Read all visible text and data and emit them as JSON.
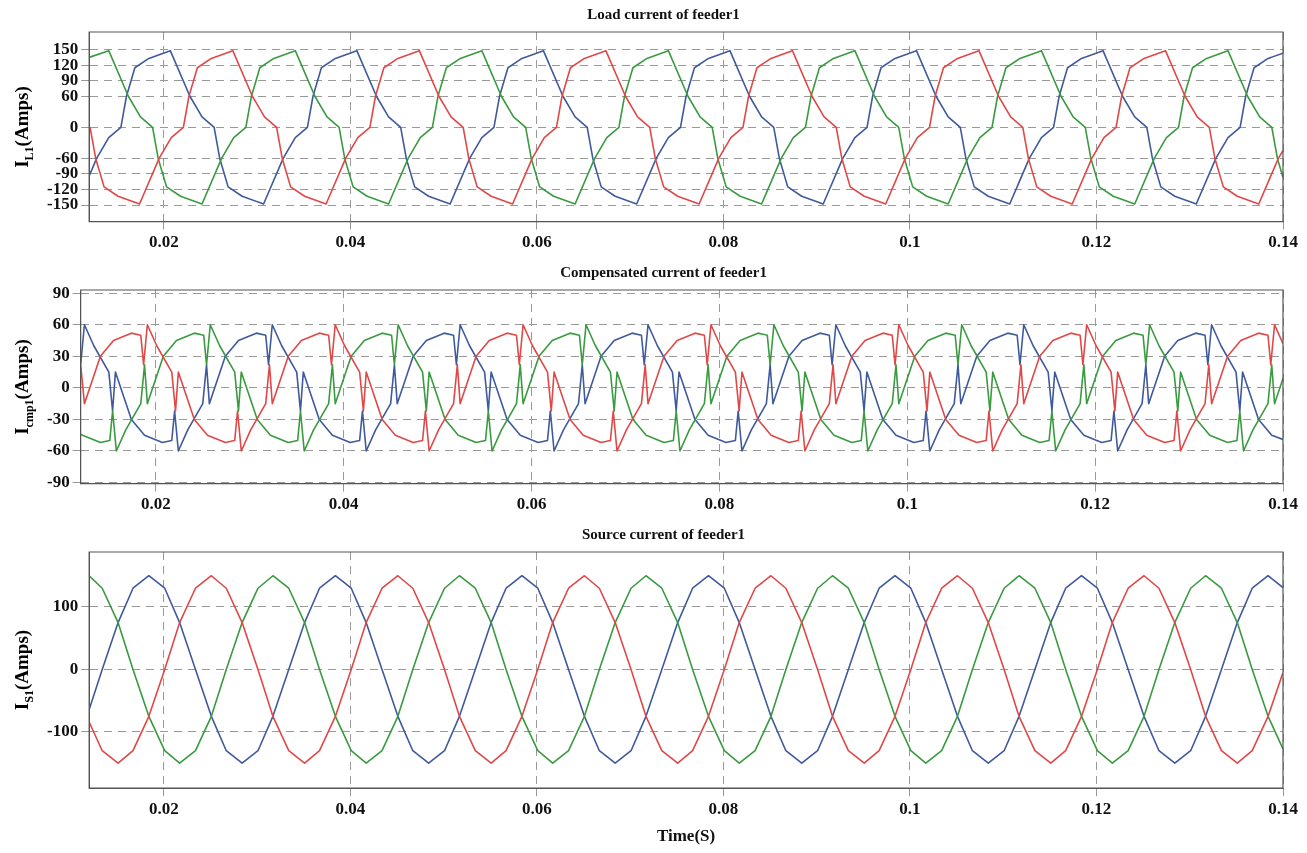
{
  "chart_data": [
    {
      "type": "line",
      "title": "Load current of feeder1",
      "ylabel": "I$_{L1}$(Amps)",
      "xlim": [
        0.012,
        0.14
      ],
      "xticks": [
        0.02,
        0.04,
        0.06,
        0.08,
        0.1,
        0.12,
        0.14
      ],
      "ylim": [
        -182,
        184
      ],
      "yticks": [
        -150,
        -120,
        -90,
        -60,
        0,
        60,
        90,
        120,
        150
      ],
      "grid": true,
      "marker": "none",
      "line_style": "solid",
      "series": [
        {
          "color": "#e04848",
          "x": [
            0.0121,
            0.0127,
            0.0136,
            0.0151,
            0.0174,
            0.0195,
            0.0208,
            0.0221,
            0.0227,
            0.0236,
            0.0251,
            0.0274,
            0.0295,
            0.0308,
            0.0321,
            0.0327,
            0.0336,
            0.0351,
            0.0374,
            0.0395,
            0.0408,
            0.0421,
            0.0427,
            0.0436,
            0.0451,
            0.0474,
            0.0495,
            0.0508,
            0.0521,
            0.0527,
            0.0536,
            0.0551,
            0.0574,
            0.0595,
            0.0608,
            0.0621,
            0.0627,
            0.0636,
            0.0651,
            0.0674,
            0.0695,
            0.0708,
            0.0721,
            0.0727,
            0.0736,
            0.0751,
            0.0774,
            0.0795,
            0.0808,
            0.0821,
            0.0827,
            0.0836,
            0.0851,
            0.0874,
            0.0895,
            0.0908,
            0.0921,
            0.0927,
            0.0936,
            0.0951,
            0.0974,
            0.0995,
            0.1008,
            0.1021,
            0.1027,
            0.1036,
            0.1051,
            0.1074,
            0.1095,
            0.1108,
            0.1121,
            0.1127,
            0.1136,
            0.1151,
            0.1174,
            0.1195,
            0.1208,
            0.1221,
            0.1227,
            0.1236,
            0.1251,
            0.1274,
            0.1295,
            0.1308,
            0.1321,
            0.1327,
            0.1336,
            0.1351,
            0.1374,
            0.1395,
            0.14
          ],
          "values": [
            0,
            -60,
            -115,
            -133,
            -148,
            -60,
            -20,
            0,
            60,
            115,
            133,
            148,
            60,
            20,
            0,
            -60,
            -115,
            -133,
            -148,
            -60,
            -20,
            0,
            60,
            115,
            133,
            148,
            60,
            20,
            0,
            -60,
            -115,
            -133,
            -148,
            -60,
            -20,
            0,
            60,
            115,
            133,
            148,
            60,
            20,
            0,
            -60,
            -115,
            -133,
            -148,
            -60,
            -20,
            0,
            60,
            115,
            133,
            148,
            60,
            20,
            0,
            -60,
            -115,
            -133,
            -148,
            -60,
            -20,
            0,
            60,
            115,
            133,
            148,
            60,
            20,
            0,
            -60,
            -115,
            -133,
            -148,
            -60,
            -20,
            0,
            60,
            115,
            133,
            148,
            60,
            20,
            0,
            -60,
            -115,
            -133,
            -148,
            -60,
            -45
          ]
        },
        {
          "color": "#3a9a40",
          "x": [
            0.012,
            0.0141,
            0.0162,
            0.0175,
            0.0188,
            0.0194,
            0.0203,
            0.0218,
            0.0241,
            0.0262,
            0.0275,
            0.0288,
            0.0294,
            0.0303,
            0.0318,
            0.0341,
            0.0362,
            0.0375,
            0.0388,
            0.0394,
            0.0403,
            0.0418,
            0.0441,
            0.0462,
            0.0475,
            0.0488,
            0.0494,
            0.0503,
            0.0518,
            0.0541,
            0.0562,
            0.0575,
            0.0588,
            0.0594,
            0.0603,
            0.0618,
            0.0641,
            0.0662,
            0.0675,
            0.0688,
            0.0694,
            0.0703,
            0.0718,
            0.0741,
            0.0762,
            0.0775,
            0.0788,
            0.0794,
            0.0803,
            0.0818,
            0.0841,
            0.0862,
            0.0875,
            0.0888,
            0.0894,
            0.0903,
            0.0918,
            0.0941,
            0.0962,
            0.0975,
            0.0988,
            0.0994,
            0.1003,
            0.1018,
            0.1041,
            0.1062,
            0.1075,
            0.1088,
            0.1094,
            0.1103,
            0.1118,
            0.1141,
            0.1162,
            0.1175,
            0.1188,
            0.1194,
            0.1203,
            0.1218,
            0.1241,
            0.1262,
            0.1275,
            0.1288,
            0.1294,
            0.1303,
            0.1318,
            0.1341,
            0.1362,
            0.1375,
            0.1388,
            0.1394,
            0.14
          ],
          "values": [
            135,
            148,
            60,
            20,
            0,
            -60,
            -115,
            -133,
            -148,
            -60,
            -20,
            0,
            60,
            115,
            133,
            148,
            60,
            20,
            0,
            -60,
            -115,
            -133,
            -148,
            -60,
            -20,
            0,
            60,
            115,
            133,
            148,
            60,
            20,
            0,
            -60,
            -115,
            -133,
            -148,
            -60,
            -20,
            0,
            60,
            115,
            133,
            148,
            60,
            20,
            0,
            -60,
            -115,
            -133,
            -148,
            -60,
            -20,
            0,
            60,
            115,
            133,
            148,
            60,
            20,
            0,
            -60,
            -115,
            -133,
            -148,
            -60,
            -20,
            0,
            60,
            115,
            133,
            148,
            60,
            20,
            0,
            -60,
            -115,
            -133,
            -148,
            -60,
            -20,
            0,
            60,
            115,
            133,
            148,
            60,
            20,
            0,
            -60,
            -97
          ]
        },
        {
          "color": "#3f5a9c",
          "x": [
            0.012,
            0.0128,
            0.0141,
            0.0154,
            0.016,
            0.0169,
            0.0184,
            0.0207,
            0.0228,
            0.0241,
            0.0254,
            0.026,
            0.0269,
            0.0284,
            0.0307,
            0.0328,
            0.0341,
            0.0354,
            0.036,
            0.0369,
            0.0384,
            0.0407,
            0.0428,
            0.0441,
            0.0454,
            0.046,
            0.0469,
            0.0484,
            0.0507,
            0.0528,
            0.0541,
            0.0554,
            0.056,
            0.0569,
            0.0584,
            0.0607,
            0.0628,
            0.0641,
            0.0654,
            0.066,
            0.0669,
            0.0684,
            0.0707,
            0.0728,
            0.0741,
            0.0754,
            0.076,
            0.0769,
            0.0784,
            0.0807,
            0.0828,
            0.0841,
            0.0854,
            0.086,
            0.0869,
            0.0884,
            0.0907,
            0.0928,
            0.0941,
            0.0954,
            0.096,
            0.0969,
            0.0984,
            0.1007,
            0.1028,
            0.1041,
            0.1054,
            0.106,
            0.1069,
            0.1084,
            0.1107,
            0.1128,
            0.1141,
            0.1154,
            0.116,
            0.1169,
            0.1184,
            0.1207,
            0.1228,
            0.1241,
            0.1254,
            0.126,
            0.1269,
            0.1284,
            0.1307,
            0.1328,
            0.1341,
            0.1354,
            0.136,
            0.1369,
            0.1384,
            0.14
          ],
          "values": [
            -94,
            -60,
            -20,
            0,
            60,
            115,
            133,
            148,
            60,
            20,
            0,
            -60,
            -115,
            -133,
            -148,
            -60,
            -20,
            0,
            60,
            115,
            133,
            148,
            60,
            20,
            0,
            -60,
            -115,
            -133,
            -148,
            -60,
            -20,
            0,
            60,
            115,
            133,
            148,
            60,
            20,
            0,
            -60,
            -115,
            -133,
            -148,
            -60,
            -20,
            0,
            60,
            115,
            133,
            148,
            60,
            20,
            0,
            -60,
            -115,
            -133,
            -148,
            -60,
            -20,
            0,
            60,
            115,
            133,
            148,
            60,
            20,
            0,
            -60,
            -115,
            -133,
            -148,
            -60,
            -20,
            0,
            60,
            115,
            133,
            148,
            60,
            20,
            0,
            -60,
            -115,
            -133,
            -148,
            -60,
            -20,
            0,
            60,
            115,
            133,
            143
          ]
        }
      ]
    },
    {
      "type": "line",
      "title": "Compensated current of feeder1",
      "ylabel": "I$_{cmp1}$(Amps)",
      "xlim": [
        0.012,
        0.14
      ],
      "xticks": [
        0.02,
        0.04,
        0.06,
        0.08,
        0.1,
        0.12,
        0.14
      ],
      "ylim": [
        -91,
        93
      ],
      "yticks": [
        -90,
        -60,
        -30,
        0,
        30,
        60,
        90
      ],
      "grid": true,
      "marker": "none",
      "line_style": "solid",
      "series": [
        {
          "color": "#e04848",
          "x": [
            0.012,
            0.0124,
            0.0141,
            0.0155,
            0.0174,
            0.0184,
            0.0187,
            0.0191,
            0.0201,
            0.0217,
            0.0221,
            0.0224,
            0.0241,
            0.0255,
            0.0274,
            0.0284,
            0.0287,
            0.0291,
            0.0301,
            0.0317,
            0.0321,
            0.0324,
            0.0341,
            0.0355,
            0.0374,
            0.0384,
            0.0387,
            0.0391,
            0.0401,
            0.0417,
            0.0421,
            0.0424,
            0.0441,
            0.0455,
            0.0474,
            0.0484,
            0.0487,
            0.0491,
            0.0501,
            0.0517,
            0.0521,
            0.0524,
            0.0541,
            0.0555,
            0.0574,
            0.0584,
            0.0587,
            0.0591,
            0.0601,
            0.0617,
            0.0621,
            0.0624,
            0.0641,
            0.0655,
            0.0674,
            0.0684,
            0.0687,
            0.0691,
            0.0701,
            0.0717,
            0.0721,
            0.0724,
            0.0741,
            0.0755,
            0.0774,
            0.0784,
            0.0787,
            0.0791,
            0.0801,
            0.0817,
            0.0821,
            0.0824,
            0.0841,
            0.0855,
            0.0874,
            0.0884,
            0.0887,
            0.0891,
            0.0901,
            0.0917,
            0.0921,
            0.0924,
            0.0941,
            0.0955,
            0.0974,
            0.0984,
            0.0987,
            0.0991,
            0.1001,
            0.1017,
            0.1021,
            0.1024,
            0.1041,
            0.1055,
            0.1074,
            0.1084,
            0.1087,
            0.1091,
            0.1101,
            0.1117,
            0.1121,
            0.1124,
            0.1141,
            0.1155,
            0.1174,
            0.1184,
            0.1187,
            0.1191,
            0.1201,
            0.1217,
            0.1221,
            0.1224,
            0.1241,
            0.1255,
            0.1274,
            0.1284,
            0.1287,
            0.1291,
            0.1301,
            0.1317,
            0.1321,
            0.1324,
            0.1341,
            0.1355,
            0.1374,
            0.1384,
            0.1387,
            0.1391,
            0.14
          ],
          "values": [
            22,
            -15,
            30,
            45,
            52,
            50,
            22,
            60,
            40,
            15,
            -22,
            15,
            -30,
            -45,
            -52,
            -50,
            -22,
            -60,
            -40,
            -15,
            22,
            -15,
            30,
            45,
            52,
            50,
            22,
            60,
            40,
            15,
            -22,
            15,
            -30,
            -45,
            -52,
            -50,
            -22,
            -60,
            -40,
            -15,
            22,
            -15,
            30,
            45,
            52,
            50,
            22,
            60,
            40,
            15,
            -22,
            15,
            -30,
            -45,
            -52,
            -50,
            -22,
            -60,
            -40,
            -15,
            22,
            -15,
            30,
            45,
            52,
            50,
            22,
            60,
            40,
            15,
            -22,
            15,
            -30,
            -45,
            -52,
            -50,
            -22,
            -60,
            -40,
            -15,
            22,
            -15,
            30,
            45,
            52,
            50,
            22,
            60,
            40,
            15,
            -22,
            15,
            -30,
            -45,
            -52,
            -50,
            -22,
            -60,
            -40,
            -15,
            22,
            -15,
            30,
            45,
            52,
            50,
            22,
            60,
            40,
            15,
            -22,
            15,
            -30,
            -45,
            -52,
            -50,
            -22,
            -60,
            -40,
            -15,
            22,
            -15,
            30,
            45,
            52,
            50,
            22,
            60,
            42
          ]
        },
        {
          "color": "#3a9a40",
          "x": [
            0.012,
            0.0122,
            0.0141,
            0.0151,
            0.0154,
            0.0158,
            0.0168,
            0.0184,
            0.0188,
            0.0191,
            0.0208,
            0.0222,
            0.0241,
            0.0251,
            0.0254,
            0.0258,
            0.0268,
            0.0284,
            0.0288,
            0.0291,
            0.0308,
            0.0322,
            0.0341,
            0.0351,
            0.0354,
            0.0358,
            0.0368,
            0.0384,
            0.0388,
            0.0391,
            0.0408,
            0.0422,
            0.0441,
            0.0451,
            0.0454,
            0.0458,
            0.0468,
            0.0484,
            0.0488,
            0.0491,
            0.0508,
            0.0522,
            0.0541,
            0.0551,
            0.0554,
            0.0558,
            0.0568,
            0.0584,
            0.0588,
            0.0591,
            0.0608,
            0.0622,
            0.0641,
            0.0651,
            0.0654,
            0.0658,
            0.0668,
            0.0684,
            0.0688,
            0.0691,
            0.0708,
            0.0722,
            0.0741,
            0.0751,
            0.0754,
            0.0758,
            0.0768,
            0.0784,
            0.0788,
            0.0791,
            0.0808,
            0.0822,
            0.0841,
            0.0851,
            0.0854,
            0.0858,
            0.0868,
            0.0884,
            0.0888,
            0.0891,
            0.0908,
            0.0922,
            0.0941,
            0.0951,
            0.0954,
            0.0958,
            0.0968,
            0.0984,
            0.0988,
            0.0991,
            0.1008,
            0.1022,
            0.1041,
            0.1051,
            0.1054,
            0.1058,
            0.1068,
            0.1084,
            0.1088,
            0.1091,
            0.1108,
            0.1122,
            0.1141,
            0.1151,
            0.1154,
            0.1158,
            0.1168,
            0.1184,
            0.1188,
            0.1191,
            0.1208,
            0.1222,
            0.1241,
            0.1251,
            0.1254,
            0.1258,
            0.1268,
            0.1284,
            0.1288,
            0.1291,
            0.1308,
            0.1322,
            0.1341,
            0.1351,
            0.1354,
            0.1358,
            0.1368,
            0.1384,
            0.1388,
            0.1391,
            0.14
          ],
          "values": [
            -44,
            -45,
            -52,
            -50,
            -22,
            -60,
            -40,
            -15,
            22,
            -15,
            30,
            45,
            52,
            50,
            22,
            60,
            40,
            15,
            -22,
            15,
            -30,
            -45,
            -52,
            -50,
            -22,
            -60,
            -40,
            -15,
            22,
            -15,
            30,
            45,
            52,
            50,
            22,
            60,
            40,
            15,
            -22,
            15,
            -30,
            -45,
            -52,
            -50,
            -22,
            -60,
            -40,
            -15,
            22,
            -15,
            30,
            45,
            52,
            50,
            22,
            60,
            40,
            15,
            -22,
            15,
            -30,
            -45,
            -52,
            -50,
            -22,
            -60,
            -40,
            -15,
            22,
            -15,
            30,
            45,
            52,
            50,
            22,
            60,
            40,
            15,
            -22,
            15,
            -30,
            -45,
            -52,
            -50,
            -22,
            -60,
            -40,
            -15,
            22,
            -15,
            30,
            45,
            52,
            50,
            22,
            60,
            40,
            15,
            -22,
            15,
            -30,
            -45,
            -52,
            -50,
            -22,
            -60,
            -40,
            -15,
            22,
            -15,
            30,
            45,
            52,
            50,
            22,
            60,
            40,
            15,
            -22,
            15,
            -30,
            -45,
            -52,
            -50,
            -22,
            -60,
            -40,
            -15,
            22,
            -15,
            9
          ]
        },
        {
          "color": "#3f5a9c",
          "x": [
            0.012,
            0.0124,
            0.0134,
            0.015,
            0.0154,
            0.0157,
            0.0174,
            0.0188,
            0.0207,
            0.0217,
            0.022,
            0.0224,
            0.0234,
            0.025,
            0.0254,
            0.0257,
            0.0274,
            0.0288,
            0.0307,
            0.0317,
            0.032,
            0.0324,
            0.0334,
            0.035,
            0.0354,
            0.0357,
            0.0374,
            0.0388,
            0.0407,
            0.0417,
            0.042,
            0.0424,
            0.0434,
            0.045,
            0.0454,
            0.0457,
            0.0474,
            0.0488,
            0.0507,
            0.0517,
            0.052,
            0.0524,
            0.0534,
            0.055,
            0.0554,
            0.0557,
            0.0574,
            0.0588,
            0.0607,
            0.0617,
            0.062,
            0.0624,
            0.0634,
            0.065,
            0.0654,
            0.0657,
            0.0674,
            0.0688,
            0.0707,
            0.0717,
            0.072,
            0.0724,
            0.0734,
            0.075,
            0.0754,
            0.0757,
            0.0774,
            0.0788,
            0.0807,
            0.0817,
            0.082,
            0.0824,
            0.0834,
            0.085,
            0.0854,
            0.0857,
            0.0874,
            0.0888,
            0.0907,
            0.0917,
            0.092,
            0.0924,
            0.0934,
            0.095,
            0.0954,
            0.0957,
            0.0974,
            0.0988,
            0.1007,
            0.1017,
            0.102,
            0.1024,
            0.1034,
            0.105,
            0.1054,
            0.1057,
            0.1074,
            0.1088,
            0.1107,
            0.1117,
            0.112,
            0.1124,
            0.1134,
            0.115,
            0.1154,
            0.1157,
            0.1174,
            0.1188,
            0.1207,
            0.1217,
            0.122,
            0.1224,
            0.1234,
            0.125,
            0.1254,
            0.1257,
            0.1274,
            0.1288,
            0.1307,
            0.1317,
            0.132,
            0.1324,
            0.1334,
            0.135,
            0.1354,
            0.1357,
            0.1374,
            0.1388,
            0.14
          ],
          "values": [
            22,
            60,
            40,
            15,
            -22,
            15,
            -30,
            -45,
            -52,
            -50,
            -22,
            -60,
            -40,
            -15,
            22,
            -15,
            30,
            45,
            52,
            50,
            22,
            60,
            40,
            15,
            -22,
            15,
            -30,
            -45,
            -52,
            -50,
            -22,
            -60,
            -40,
            -15,
            22,
            -15,
            30,
            45,
            52,
            50,
            22,
            60,
            40,
            15,
            -22,
            15,
            -30,
            -45,
            -52,
            -50,
            -22,
            -60,
            -40,
            -15,
            22,
            -15,
            30,
            45,
            52,
            50,
            22,
            60,
            40,
            15,
            -22,
            15,
            -30,
            -45,
            -52,
            -50,
            -22,
            -60,
            -40,
            -15,
            22,
            -15,
            30,
            45,
            52,
            50,
            22,
            60,
            40,
            15,
            -22,
            15,
            -30,
            -45,
            -52,
            -50,
            -22,
            -60,
            -40,
            -15,
            22,
            -15,
            30,
            45,
            52,
            50,
            22,
            60,
            40,
            15,
            -22,
            15,
            -30,
            -45,
            -52,
            -50,
            -22,
            -60,
            -40,
            -15,
            22,
            -15,
            30,
            45,
            52,
            50,
            22,
            60,
            40,
            15,
            -22,
            15,
            -30,
            -45,
            -49
          ]
        }
      ]
    },
    {
      "type": "line",
      "title": "Source current of feeder1",
      "xlabel": "Time(S)",
      "ylabel": "I$_{S1}$(Amps)",
      "xlim": [
        0.012,
        0.14
      ],
      "xticks": [
        0.02,
        0.04,
        0.06,
        0.08,
        0.1,
        0.12,
        0.14
      ],
      "ylim": [
        -190,
        188
      ],
      "yticks": [
        -100,
        0,
        100
      ],
      "grid": true,
      "marker": "none",
      "line_style": "solid",
      "x": [
        0.012,
        0.0134,
        0.0151,
        0.0167,
        0.0184,
        0.0201,
        0.0217,
        0.0234,
        0.0251,
        0.0267,
        0.0284,
        0.0301,
        0.0317,
        0.0334,
        0.0351,
        0.0367,
        0.0384,
        0.0401,
        0.0417,
        0.0434,
        0.0451,
        0.0467,
        0.0484,
        0.0501,
        0.0517,
        0.0534,
        0.0551,
        0.0567,
        0.0584,
        0.0601,
        0.0617,
        0.0634,
        0.0651,
        0.0667,
        0.0684,
        0.0701,
        0.0717,
        0.0734,
        0.0751,
        0.0767,
        0.0784,
        0.0801,
        0.0817,
        0.0834,
        0.0851,
        0.0867,
        0.0884,
        0.0901,
        0.0917,
        0.0934,
        0.0951,
        0.0967,
        0.0984,
        0.1001,
        0.1017,
        0.1034,
        0.1051,
        0.1067,
        0.1084,
        0.1101,
        0.1117,
        0.1134,
        0.1151,
        0.1167,
        0.1184,
        0.1201,
        0.1217,
        0.1234,
        0.1251,
        0.1267,
        0.1284,
        0.1301,
        0.1317,
        0.1334,
        0.1351,
        0.1367,
        0.1384,
        0.14
      ],
      "series": [
        {
          "color": "#e04848",
          "values": [
            -84,
            -130,
            -150,
            -130,
            -75,
            0,
            75,
            130,
            150,
            130,
            75,
            0,
            -75,
            -130,
            -150,
            -130,
            -75,
            0,
            75,
            130,
            150,
            130,
            75,
            0,
            -75,
            -130,
            -150,
            -130,
            -75,
            0,
            75,
            130,
            150,
            130,
            75,
            0,
            -75,
            -130,
            -150,
            -130,
            -75,
            0,
            75,
            130,
            150,
            130,
            75,
            0,
            -75,
            -130,
            -150,
            -130,
            -75,
            0,
            75,
            130,
            150,
            130,
            75,
            0,
            -75,
            -130,
            -150,
            -130,
            -75,
            0,
            75,
            130,
            150,
            130,
            75,
            0,
            -75,
            -130,
            -150,
            -130,
            -75,
            -5
          ]
        },
        {
          "color": "#3a9a40",
          "values": [
            150,
            130,
            75,
            0,
            -75,
            -130,
            -150,
            -130,
            -75,
            0,
            75,
            130,
            150,
            130,
            75,
            0,
            -75,
            -130,
            -150,
            -130,
            -75,
            0,
            75,
            130,
            150,
            130,
            75,
            0,
            -75,
            -130,
            -150,
            -130,
            -75,
            0,
            75,
            130,
            150,
            130,
            75,
            0,
            -75,
            -130,
            -150,
            -130,
            -75,
            0,
            75,
            130,
            150,
            130,
            75,
            0,
            -75,
            -130,
            -150,
            -130,
            -75,
            0,
            75,
            130,
            150,
            130,
            75,
            0,
            -75,
            -130,
            -150,
            -130,
            -75,
            0,
            75,
            130,
            150,
            130,
            75,
            0,
            -75,
            -127
          ]
        },
        {
          "color": "#3f5a9c",
          "values": [
            -64,
            0,
            75,
            130,
            150,
            130,
            75,
            0,
            -75,
            -130,
            -150,
            -130,
            -75,
            0,
            75,
            130,
            150,
            130,
            75,
            0,
            -75,
            -130,
            -150,
            -130,
            -75,
            0,
            75,
            130,
            150,
            130,
            75,
            0,
            -75,
            -130,
            -150,
            -130,
            -75,
            0,
            75,
            130,
            150,
            130,
            75,
            0,
            -75,
            -130,
            -150,
            -130,
            -75,
            0,
            75,
            130,
            150,
            130,
            75,
            0,
            -75,
            -130,
            -150,
            -130,
            -75,
            0,
            75,
            130,
            150,
            130,
            75,
            0,
            -75,
            -130,
            -150,
            -130,
            -75,
            0,
            75,
            130,
            150,
            131
          ]
        }
      ]
    }
  ]
}
